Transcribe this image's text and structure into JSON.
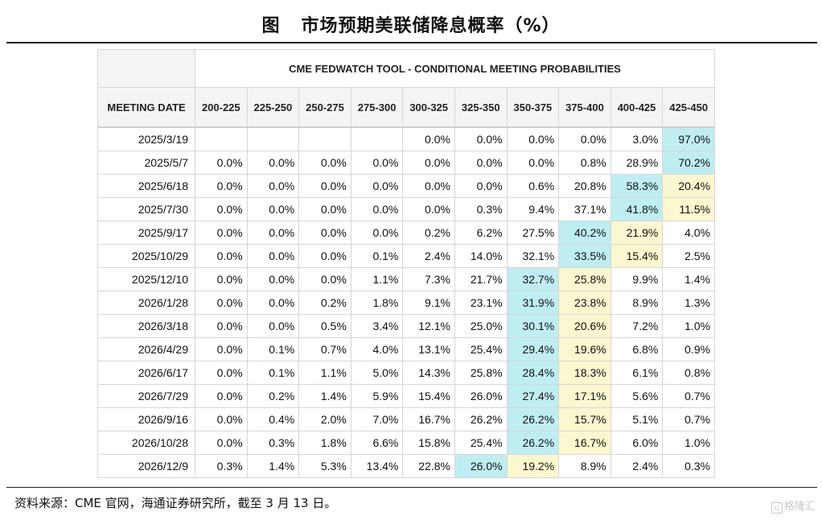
{
  "title": {
    "prefix": "图",
    "text": "市场预期美联储降息概率（%）"
  },
  "table": {
    "header": "CME FEDWATCH TOOL - CONDITIONAL MEETING PROBABILITIES",
    "date_col": "MEETING DATE",
    "columns": [
      "200-225",
      "225-250",
      "250-275",
      "275-300",
      "300-325",
      "325-350",
      "350-375",
      "375-400",
      "400-425",
      "425-450"
    ],
    "rows": [
      {
        "date": "2025/3/19",
        "values": [
          "",
          "",
          "",
          "",
          "0.0%",
          "0.0%",
          "0.0%",
          "0.0%",
          "3.0%",
          "97.0%"
        ],
        "blue": 9,
        "yellow": -1
      },
      {
        "date": "2025/5/7",
        "values": [
          "0.0%",
          "0.0%",
          "0.0%",
          "0.0%",
          "0.0%",
          "0.0%",
          "0.0%",
          "0.8%",
          "28.9%",
          "70.2%"
        ],
        "blue": 9,
        "yellow": -1
      },
      {
        "date": "2025/6/18",
        "values": [
          "0.0%",
          "0.0%",
          "0.0%",
          "0.0%",
          "0.0%",
          "0.0%",
          "0.6%",
          "20.8%",
          "58.3%",
          "20.4%"
        ],
        "blue": 8,
        "yellow": 9
      },
      {
        "date": "2025/7/30",
        "values": [
          "0.0%",
          "0.0%",
          "0.0%",
          "0.0%",
          "0.0%",
          "0.3%",
          "9.4%",
          "37.1%",
          "41.8%",
          "11.5%"
        ],
        "blue": 8,
        "yellow": 9
      },
      {
        "date": "2025/9/17",
        "values": [
          "0.0%",
          "0.0%",
          "0.0%",
          "0.0%",
          "0.2%",
          "6.2%",
          "27.5%",
          "40.2%",
          "21.9%",
          "4.0%"
        ],
        "blue": 7,
        "yellow": 8
      },
      {
        "date": "2025/10/29",
        "values": [
          "0.0%",
          "0.0%",
          "0.0%",
          "0.1%",
          "2.4%",
          "14.0%",
          "32.1%",
          "33.5%",
          "15.4%",
          "2.5%"
        ],
        "blue": 7,
        "yellow": 8
      },
      {
        "date": "2025/12/10",
        "values": [
          "0.0%",
          "0.0%",
          "0.0%",
          "1.1%",
          "7.3%",
          "21.7%",
          "32.7%",
          "25.8%",
          "9.9%",
          "1.4%"
        ],
        "blue": 6,
        "yellow": 7
      },
      {
        "date": "2026/1/28",
        "values": [
          "0.0%",
          "0.0%",
          "0.2%",
          "1.8%",
          "9.1%",
          "23.1%",
          "31.9%",
          "23.8%",
          "8.9%",
          "1.3%"
        ],
        "blue": 6,
        "yellow": 7
      },
      {
        "date": "2026/3/18",
        "values": [
          "0.0%",
          "0.0%",
          "0.5%",
          "3.4%",
          "12.1%",
          "25.0%",
          "30.1%",
          "20.6%",
          "7.2%",
          "1.0%"
        ],
        "blue": 6,
        "yellow": 7
      },
      {
        "date": "2026/4/29",
        "values": [
          "0.0%",
          "0.1%",
          "0.7%",
          "4.0%",
          "13.1%",
          "25.4%",
          "29.4%",
          "19.6%",
          "6.8%",
          "0.9%"
        ],
        "blue": 6,
        "yellow": 7
      },
      {
        "date": "2026/6/17",
        "values": [
          "0.0%",
          "0.1%",
          "1.1%",
          "5.0%",
          "14.3%",
          "25.8%",
          "28.4%",
          "18.3%",
          "6.1%",
          "0.8%"
        ],
        "blue": 6,
        "yellow": 7
      },
      {
        "date": "2026/7/29",
        "values": [
          "0.0%",
          "0.2%",
          "1.4%",
          "5.9%",
          "15.4%",
          "26.0%",
          "27.4%",
          "17.1%",
          "5.6%",
          "0.7%"
        ],
        "blue": 6,
        "yellow": 7
      },
      {
        "date": "2026/9/16",
        "values": [
          "0.0%",
          "0.4%",
          "2.0%",
          "7.0%",
          "16.7%",
          "26.2%",
          "26.2%",
          "15.7%",
          "5.1%",
          "0.7%"
        ],
        "blue": 6,
        "yellow": 7
      },
      {
        "date": "2026/10/28",
        "values": [
          "0.0%",
          "0.3%",
          "1.8%",
          "6.6%",
          "15.8%",
          "25.4%",
          "26.2%",
          "16.7%",
          "6.0%",
          "1.0%"
        ],
        "blue": 6,
        "yellow": 7
      },
      {
        "date": "2026/12/9",
        "values": [
          "0.3%",
          "1.4%",
          "5.3%",
          "13.4%",
          "22.8%",
          "26.0%",
          "19.2%",
          "8.9%",
          "2.4%",
          "0.3%"
        ],
        "blue": 5,
        "yellow": 6
      }
    ]
  },
  "footnote": "资料来源：CME 官网，海通证券研究所，截至 3 月 13 日。",
  "watermark": {
    "icon": "G",
    "text": "格隆汇"
  },
  "colors": {
    "blue_cell": "#bfeef2",
    "yellow_cell": "#fbf7cf"
  }
}
